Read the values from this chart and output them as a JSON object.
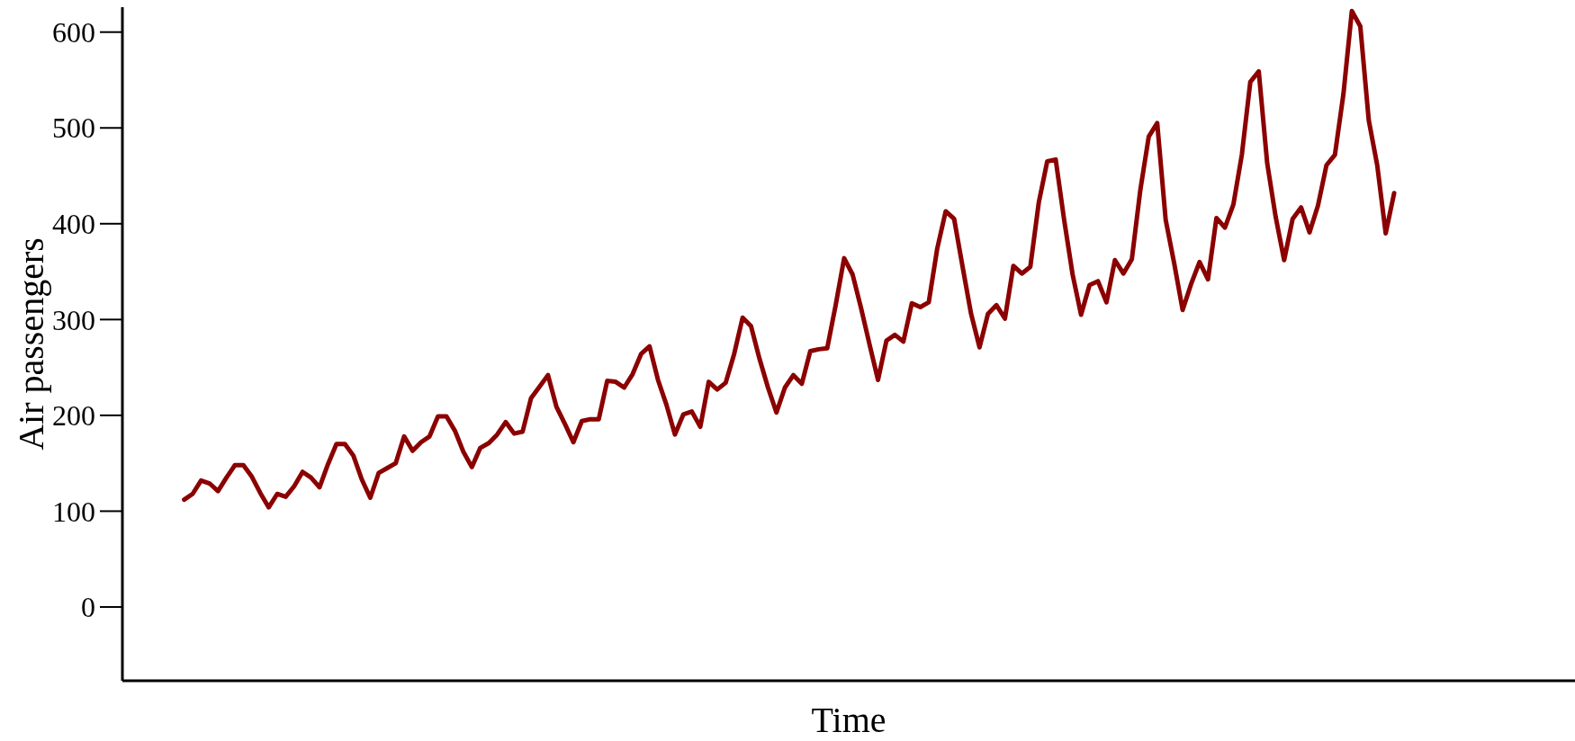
{
  "chart_data": {
    "type": "line",
    "xlabel": "Time",
    "ylabel": "Air passengers",
    "categories": [
      null,
      null,
      null,
      null,
      null,
      null,
      null,
      null,
      null,
      null,
      null,
      null,
      null,
      null,
      null,
      null,
      null,
      null,
      null,
      null,
      null,
      null,
      null,
      null,
      null,
      null,
      null,
      null,
      null,
      null,
      null,
      null,
      null,
      null,
      null,
      null,
      null,
      null,
      null,
      null,
      null,
      null,
      null,
      null,
      null,
      null,
      null,
      null,
      null,
      null,
      null,
      null,
      null,
      null,
      null,
      null,
      null,
      null,
      null,
      null,
      null,
      null,
      null,
      null,
      null,
      null,
      null,
      null,
      null,
      null,
      null,
      null,
      null,
      null,
      null,
      null,
      null,
      null,
      null,
      null,
      null,
      null,
      null,
      null,
      null,
      null,
      null,
      null,
      null,
      null,
      null,
      null,
      null,
      null,
      null,
      null,
      null,
      null,
      null,
      null,
      null,
      null,
      null,
      null,
      null,
      null,
      null,
      null,
      null,
      null,
      null,
      null,
      null,
      null,
      null,
      null,
      null,
      null,
      null,
      null,
      null,
      null,
      null,
      null,
      null,
      null,
      null,
      null,
      null,
      null,
      null,
      null,
      null,
      null,
      null,
      null,
      null,
      null,
      null,
      null,
      null,
      null,
      null,
      null
    ],
    "series": [
      {
        "color": "#8b0000",
        "values": [
          112,
          118,
          132,
          129,
          121,
          135,
          148,
          148,
          136,
          119,
          104,
          118,
          115,
          126,
          141,
          135,
          125,
          149,
          170,
          170,
          158,
          133,
          114,
          140,
          145,
          150,
          178,
          163,
          172,
          178,
          199,
          199,
          184,
          162,
          146,
          166,
          171,
          180,
          193,
          181,
          183,
          218,
          230,
          242,
          209,
          191,
          172,
          194,
          196,
          196,
          236,
          235,
          229,
          243,
          264,
          272,
          237,
          211,
          180,
          201,
          204,
          188,
          235,
          227,
          234,
          264,
          302,
          293,
          259,
          229,
          203,
          229,
          242,
          233,
          267,
          269,
          270,
          315,
          364,
          347,
          312,
          274,
          237,
          278,
          284,
          277,
          317,
          313,
          318,
          374,
          413,
          405,
          355,
          306,
          271,
          306,
          315,
          301,
          356,
          348,
          355,
          422,
          465,
          467,
          404,
          347,
          305,
          336,
          340,
          318,
          362,
          348,
          363,
          435,
          491,
          505,
          404,
          359,
          310,
          337,
          360,
          342,
          406,
          396,
          420,
          472,
          548,
          559,
          463,
          407,
          362,
          405,
          417,
          391,
          419,
          461,
          472,
          535,
          622,
          606,
          508,
          461,
          390,
          432
        ]
      }
    ],
    "ylim": [
      -77,
      626
    ],
    "yticks": [
      0,
      100,
      200,
      300,
      400,
      500,
      600
    ],
    "grid": false,
    "marker": "none",
    "line_style": "solid"
  }
}
